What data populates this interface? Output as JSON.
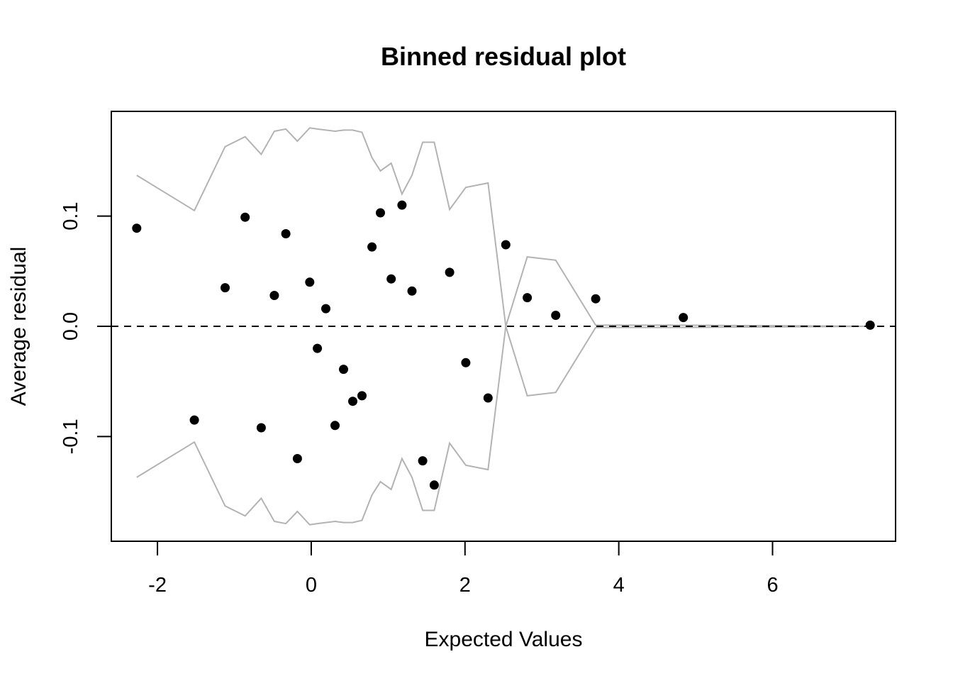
{
  "chart_data": {
    "type": "scatter",
    "title": "Binned residual plot",
    "xlabel": "Expected Values",
    "ylabel": "Average residual",
    "xlim": [
      -2.6,
      7.6
    ],
    "ylim": [
      -0.195,
      0.195
    ],
    "x_ticks": [
      {
        "value": -2,
        "label": "-2"
      },
      {
        "value": 0,
        "label": "0"
      },
      {
        "value": 2,
        "label": "2"
      },
      {
        "value": 4,
        "label": "4"
      },
      {
        "value": 6,
        "label": "6"
      }
    ],
    "y_ticks": [
      {
        "value": -0.1,
        "label": "-0.1"
      },
      {
        "value": 0.0,
        "label": "0.0"
      },
      {
        "value": 0.1,
        "label": "0.1"
      }
    ],
    "reference_line": {
      "y": 0,
      "style": "dashed",
      "color": "#000000"
    },
    "grid": false,
    "colors": {
      "points": "#000000",
      "bounds": "#b3b3b3",
      "frame": "#000000"
    },
    "points": [
      {
        "x": -2.27,
        "y": 0.089
      },
      {
        "x": -1.52,
        "y": -0.085
      },
      {
        "x": -1.12,
        "y": 0.035
      },
      {
        "x": -0.86,
        "y": 0.099
      },
      {
        "x": -0.65,
        "y": -0.092
      },
      {
        "x": -0.48,
        "y": 0.028
      },
      {
        "x": -0.33,
        "y": 0.084
      },
      {
        "x": -0.18,
        "y": -0.12
      },
      {
        "x": -0.02,
        "y": 0.04
      },
      {
        "x": 0.08,
        "y": -0.02
      },
      {
        "x": 0.19,
        "y": 0.016
      },
      {
        "x": 0.31,
        "y": -0.09
      },
      {
        "x": 0.42,
        "y": -0.039
      },
      {
        "x": 0.54,
        "y": -0.068
      },
      {
        "x": 0.66,
        "y": -0.063
      },
      {
        "x": 0.79,
        "y": 0.072
      },
      {
        "x": 0.9,
        "y": 0.103
      },
      {
        "x": 1.04,
        "y": 0.043
      },
      {
        "x": 1.18,
        "y": 0.11
      },
      {
        "x": 1.31,
        "y": 0.032
      },
      {
        "x": 1.45,
        "y": -0.122
      },
      {
        "x": 1.6,
        "y": -0.144
      },
      {
        "x": 1.8,
        "y": 0.049
      },
      {
        "x": 2.01,
        "y": -0.033
      },
      {
        "x": 2.3,
        "y": -0.065
      },
      {
        "x": 2.53,
        "y": 0.074
      },
      {
        "x": 2.81,
        "y": 0.026
      },
      {
        "x": 3.18,
        "y": 0.01
      },
      {
        "x": 3.7,
        "y": 0.025
      },
      {
        "x": 4.84,
        "y": 0.008
      },
      {
        "x": 7.27,
        "y": 0.001
      }
    ],
    "bounds": {
      "x": [
        -2.27,
        -1.52,
        -1.12,
        -0.86,
        -0.65,
        -0.48,
        -0.33,
        -0.18,
        -0.02,
        0.08,
        0.19,
        0.31,
        0.42,
        0.54,
        0.66,
        0.79,
        0.9,
        1.04,
        1.18,
        1.31,
        1.45,
        1.6,
        1.8,
        2.01,
        2.3,
        2.53,
        2.81,
        3.18,
        3.7,
        4.84,
        7.27
      ],
      "upper": [
        0.137,
        0.105,
        0.163,
        0.172,
        0.156,
        0.177,
        0.179,
        0.168,
        0.18,
        0.179,
        0.178,
        0.177,
        0.178,
        0.178,
        0.176,
        0.153,
        0.141,
        0.148,
        0.12,
        0.137,
        0.167,
        0.167,
        0.106,
        0.126,
        0.13,
        0.0,
        0.063,
        0.06,
        0.001,
        0.001,
        0.0
      ],
      "lower": [
        -0.137,
        -0.105,
        -0.163,
        -0.172,
        -0.156,
        -0.177,
        -0.179,
        -0.168,
        -0.18,
        -0.179,
        -0.178,
        -0.177,
        -0.178,
        -0.178,
        -0.176,
        -0.153,
        -0.141,
        -0.148,
        -0.12,
        -0.137,
        -0.167,
        -0.167,
        -0.106,
        -0.126,
        -0.13,
        0.0,
        -0.063,
        -0.06,
        -0.001,
        -0.001,
        0.0
      ]
    }
  }
}
